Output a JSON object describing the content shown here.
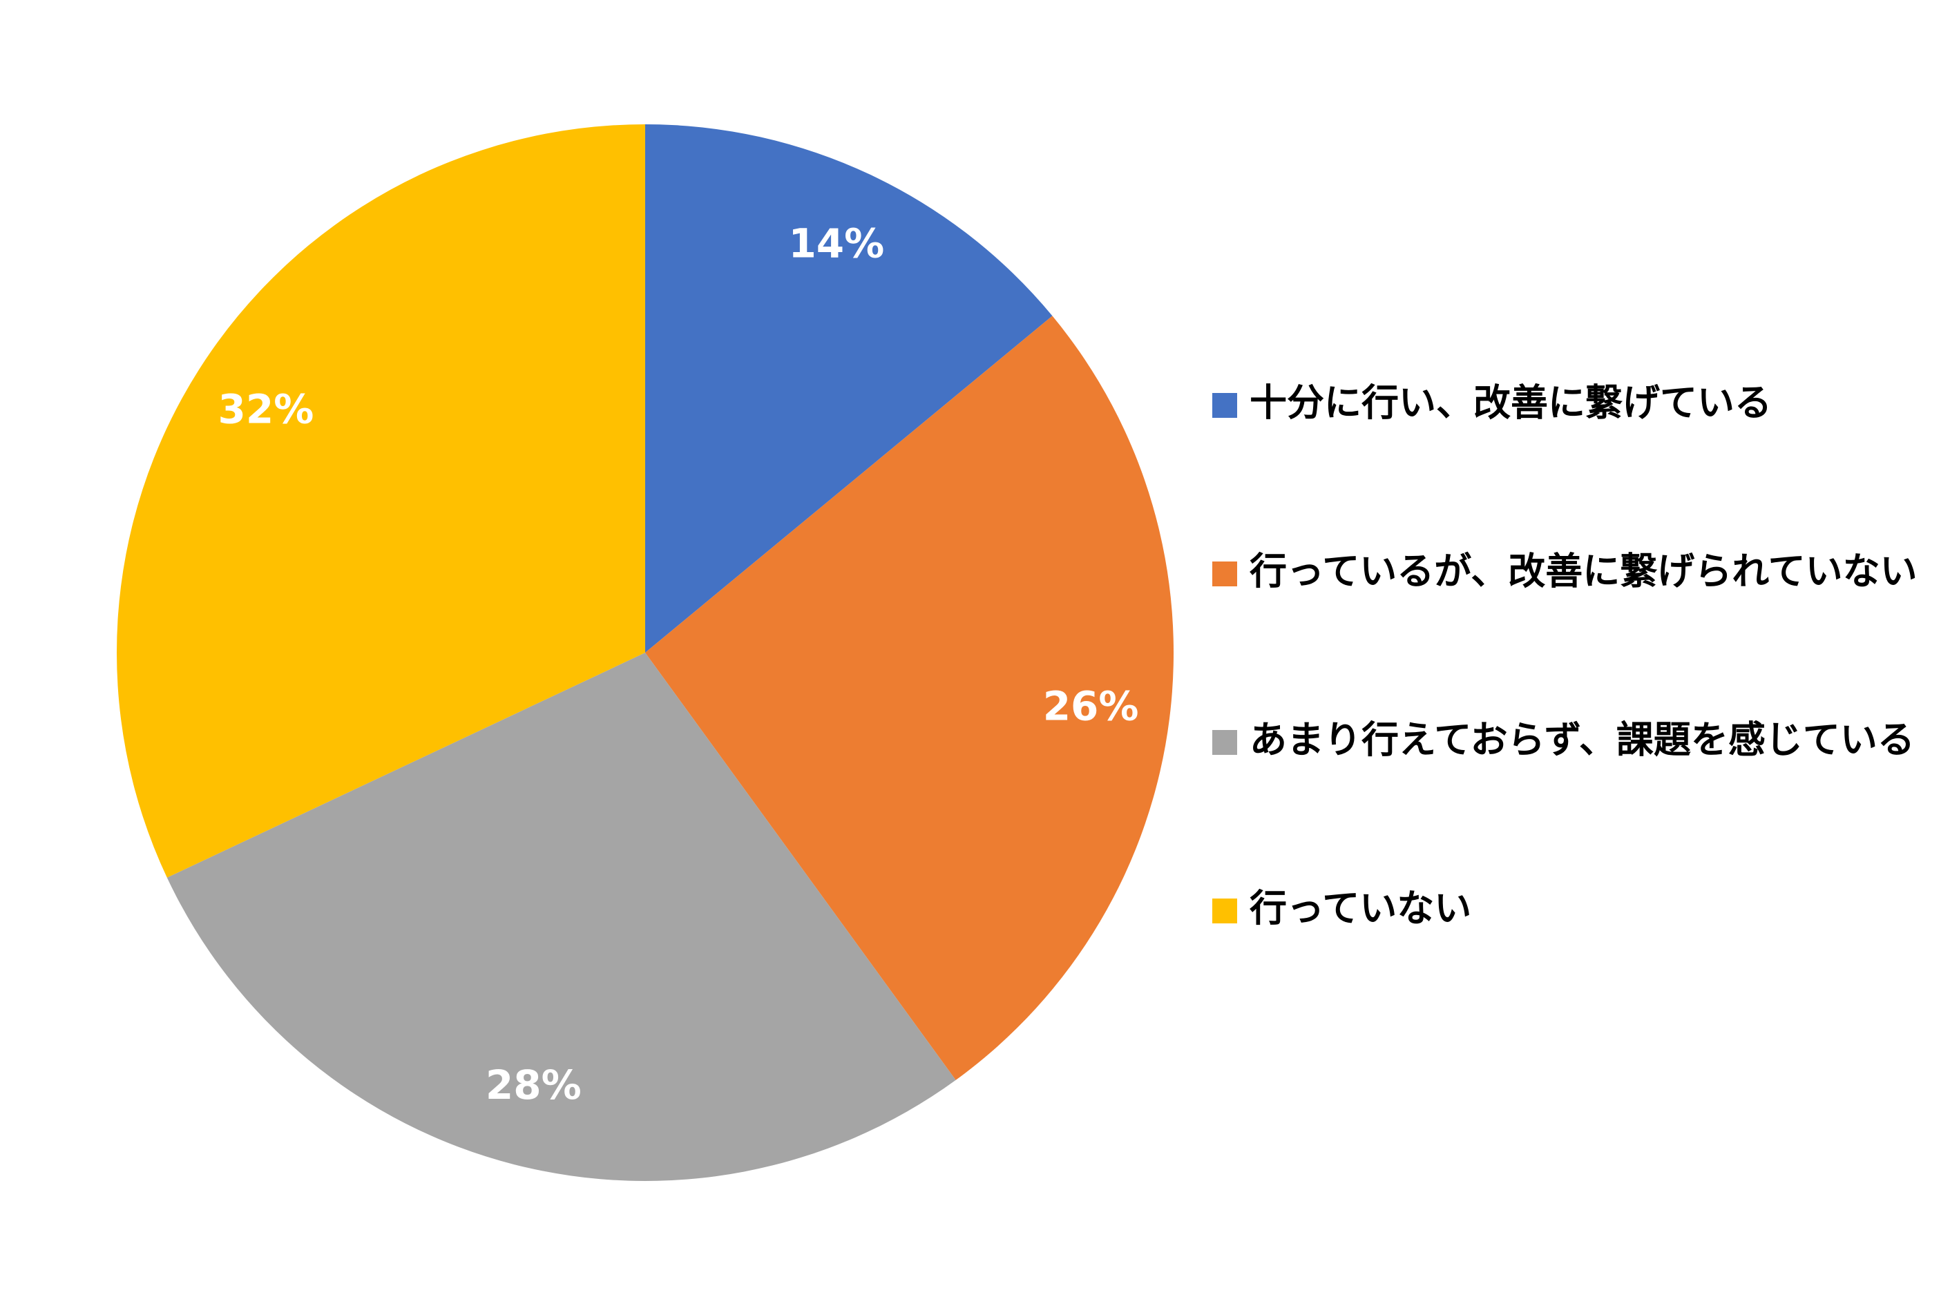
{
  "chart_data": {
    "type": "pie",
    "categories": [
      "十分に行い、改善に繋げている",
      "行っているが、改善に繋げられていない",
      "あまり行えておらず、課題を感じている",
      "行っていない"
    ],
    "values": [
      14,
      26,
      28,
      32
    ],
    "value_labels": [
      "14%",
      "26%",
      "28%",
      "32%"
    ],
    "colors": [
      "#4472c4",
      "#ed7d31",
      "#a5a5a5",
      "#ffc000"
    ],
    "legend": "right"
  }
}
